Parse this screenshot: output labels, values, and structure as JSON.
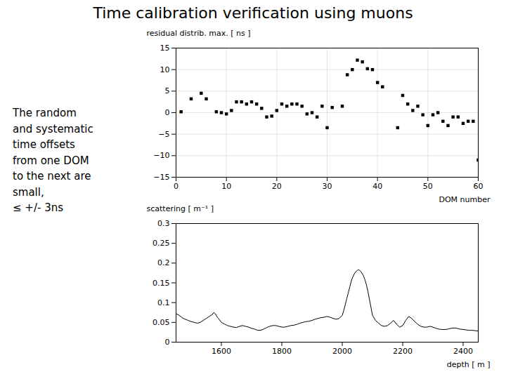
{
  "chart_data": [
    {
      "type": "scatter",
      "title": "Time calibration verification using muons",
      "annotations": [
        "The random\nand systematic\ntime offsets\nfrom one DOM\nto the next are\nsmall,\n≤ +/- 3ns"
      ],
      "xlabel": "DOM number",
      "ylabel": "residual distrib. max. [ ns ]",
      "xlim": [
        0,
        60
      ],
      "ylim": [
        -15,
        15
      ],
      "xticks": [
        0,
        10,
        20,
        30,
        40,
        50,
        60
      ],
      "yticks": [
        -15,
        -10,
        -5,
        0,
        5,
        10,
        15
      ],
      "grid": true,
      "marker": "square",
      "color": "#000000",
      "x": [
        1,
        3,
        5,
        6,
        8,
        9,
        10,
        11,
        12,
        13,
        14,
        15,
        16,
        17,
        18,
        19,
        20,
        21,
        22,
        23,
        24,
        25,
        26,
        27,
        28,
        29,
        30,
        31,
        33,
        34,
        35,
        36,
        37,
        38,
        39,
        40,
        41,
        44,
        45,
        46,
        47,
        48,
        49,
        50,
        51,
        52,
        53,
        54,
        55,
        56,
        57,
        58,
        59,
        60
      ],
      "values": [
        0.2,
        3.2,
        4.5,
        3.2,
        0.2,
        0.0,
        -0.3,
        0.5,
        2.5,
        2.5,
        2.0,
        2.5,
        2.0,
        1.0,
        -1.0,
        -0.8,
        0.5,
        2.0,
        1.5,
        2.0,
        2.0,
        1.5,
        -0.3,
        0.0,
        -1.0,
        1.5,
        -3.5,
        1.2,
        1.5,
        8.8,
        10.0,
        12.2,
        11.8,
        10.2,
        10.0,
        7.0,
        6.0,
        -3.5,
        4.0,
        2.0,
        0.5,
        1.5,
        -0.5,
        -3.0,
        -0.5,
        0.0,
        -2.0,
        -3.0,
        -1.0,
        -1.0,
        -2.5,
        -2.0,
        -2.0,
        -11.0
      ]
    },
    {
      "type": "line",
      "xlabel": "depth [ m ]",
      "ylabel": "scattering [ m⁻¹ ]",
      "xlim": [
        1450,
        2450
      ],
      "ylim": [
        0,
        0.3
      ],
      "xticks": [
        1600,
        1800,
        2000,
        2200,
        2400
      ],
      "yticks": [
        0,
        0.05,
        0.1,
        0.15,
        0.2,
        0.25,
        0.3
      ],
      "grid": false,
      "color": "#000000",
      "x": [
        1450,
        1460,
        1470,
        1480,
        1490,
        1500,
        1510,
        1520,
        1530,
        1540,
        1550,
        1560,
        1570,
        1575,
        1580,
        1585,
        1590,
        1600,
        1610,
        1620,
        1630,
        1640,
        1650,
        1660,
        1670,
        1680,
        1690,
        1700,
        1710,
        1720,
        1730,
        1740,
        1750,
        1760,
        1770,
        1780,
        1790,
        1800,
        1810,
        1820,
        1830,
        1840,
        1850,
        1860,
        1870,
        1880,
        1890,
        1900,
        1910,
        1920,
        1930,
        1940,
        1950,
        1960,
        1970,
        1980,
        1990,
        2000,
        2005,
        2010,
        2015,
        2020,
        2025,
        2030,
        2035,
        2040,
        2045,
        2050,
        2055,
        2060,
        2065,
        2070,
        2075,
        2080,
        2085,
        2090,
        2095,
        2100,
        2110,
        2120,
        2130,
        2140,
        2150,
        2160,
        2170,
        2180,
        2190,
        2200,
        2210,
        2220,
        2230,
        2240,
        2250,
        2260,
        2270,
        2280,
        2290,
        2300,
        2310,
        2320,
        2330,
        2340,
        2350,
        2360,
        2370,
        2380,
        2390,
        2400,
        2410,
        2420,
        2430,
        2440,
        2450
      ],
      "values": [
        0.072,
        0.068,
        0.062,
        0.058,
        0.055,
        0.052,
        0.05,
        0.048,
        0.05,
        0.055,
        0.06,
        0.065,
        0.07,
        0.075,
        0.072,
        0.065,
        0.06,
        0.05,
        0.046,
        0.042,
        0.04,
        0.038,
        0.037,
        0.04,
        0.042,
        0.04,
        0.038,
        0.035,
        0.033,
        0.03,
        0.03,
        0.033,
        0.037,
        0.04,
        0.042,
        0.042,
        0.04,
        0.038,
        0.038,
        0.04,
        0.042,
        0.043,
        0.045,
        0.048,
        0.05,
        0.052,
        0.053,
        0.055,
        0.058,
        0.06,
        0.062,
        0.063,
        0.065,
        0.063,
        0.06,
        0.058,
        0.06,
        0.068,
        0.08,
        0.095,
        0.11,
        0.125,
        0.14,
        0.155,
        0.165,
        0.173,
        0.178,
        0.182,
        0.183,
        0.18,
        0.175,
        0.168,
        0.158,
        0.145,
        0.128,
        0.108,
        0.088,
        0.068,
        0.055,
        0.048,
        0.042,
        0.04,
        0.042,
        0.048,
        0.055,
        0.045,
        0.038,
        0.042,
        0.055,
        0.065,
        0.06,
        0.052,
        0.045,
        0.04,
        0.038,
        0.038,
        0.04,
        0.038,
        0.035,
        0.033,
        0.032,
        0.032,
        0.033,
        0.035,
        0.036,
        0.035,
        0.033,
        0.032,
        0.031,
        0.03,
        0.03,
        0.029,
        0.028
      ]
    }
  ]
}
